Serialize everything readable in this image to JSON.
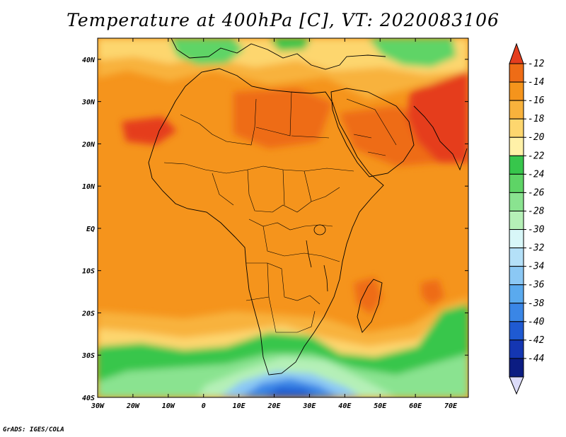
{
  "title": "Temperature at 400hPa [C], VT: 2020083106",
  "credit": "GrADS: IGES/COLA",
  "map": {
    "lon_range": [
      -30,
      75
    ],
    "lat_range": [
      -40,
      45
    ],
    "x_ticks": [
      {
        "v": -30,
        "label": "30W"
      },
      {
        "v": -20,
        "label": "20W"
      },
      {
        "v": -10,
        "label": "10W"
      },
      {
        "v": 0,
        "label": "0"
      },
      {
        "v": 10,
        "label": "10E"
      },
      {
        "v": 20,
        "label": "20E"
      },
      {
        "v": 30,
        "label": "30E"
      },
      {
        "v": 40,
        "label": "40E"
      },
      {
        "v": 50,
        "label": "50E"
      },
      {
        "v": 60,
        "label": "60E"
      },
      {
        "v": 70,
        "label": "70E"
      }
    ],
    "y_ticks": [
      {
        "v": 40,
        "label": "40N"
      },
      {
        "v": 30,
        "label": "30N"
      },
      {
        "v": 20,
        "label": "20N"
      },
      {
        "v": 10,
        "label": "10N"
      },
      {
        "v": 0,
        "label": "EQ"
      },
      {
        "v": -10,
        "label": "10S"
      },
      {
        "v": -20,
        "label": "20S"
      },
      {
        "v": -30,
        "label": "30S"
      },
      {
        "v": -40,
        "label": "40S"
      }
    ],
    "field_regions": [
      {
        "name": "background",
        "value": -16
      },
      {
        "name": "saharan-ridge",
        "value": -15
      },
      {
        "name": "west-sahara-max",
        "value": -14
      },
      {
        "name": "arabia-max",
        "value": -14
      },
      {
        "name": "india-max",
        "value": -13
      },
      {
        "name": "mediterranean-cool",
        "value": -20
      },
      {
        "name": "southern-cool-belt",
        "value": -22
      },
      {
        "name": "southern-trough",
        "value": -27
      },
      {
        "name": "cold-core",
        "value": -35
      },
      {
        "name": "madagascar-warm",
        "value": -14
      }
    ]
  },
  "colorbar": {
    "levels": [
      "-12",
      "-14",
      "-16",
      "-18",
      "-20",
      "-22",
      "-24",
      "-26",
      "-28",
      "-30",
      "-32",
      "-34",
      "-36",
      "-38",
      "-40",
      "-42",
      "-44"
    ],
    "colors": [
      "#e53e1e",
      "#ee6c16",
      "#f5941c",
      "#f8b23c",
      "#fdd66e",
      "#fff1a8",
      "#37c64c",
      "#5ed466",
      "#8ae390",
      "#b5f0b7",
      "#d8f7f8",
      "#b4e0f8",
      "#8bc8f4",
      "#5aaaee",
      "#3a86e6",
      "#1f5ad2",
      "#1436b2",
      "#0b1c82"
    ],
    "over_color": "#e53e1e",
    "under_color": "#dcdcfa"
  }
}
